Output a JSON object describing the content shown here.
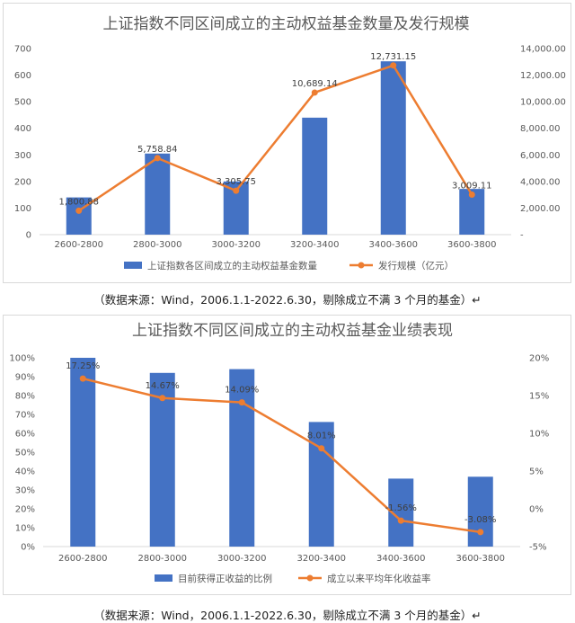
{
  "chart_data": [
    {
      "type": "bar",
      "title": "上证指数不同区间成立的主动权益基金数量及发行规模",
      "categories": [
        "2600-2800",
        "2800-3000",
        "3000-3200",
        "3200-3400",
        "3400-3600",
        "3600-3800"
      ],
      "series": [
        {
          "name": "上证指数各区间成立的主动权益基金数量",
          "kind": "bar",
          "axis": "left",
          "color": "#4472C4",
          "values": [
            140,
            305,
            200,
            440,
            652,
            172
          ]
        },
        {
          "name": "发行规模（亿元）",
          "kind": "line",
          "axis": "right",
          "color": "#ED7D31",
          "values": [
            1800.88,
            5758.84,
            3305.75,
            10689.14,
            12731.15,
            3009.11
          ],
          "labels": [
            "1,800.88",
            "5,758.84",
            "3,305.75",
            "10,689.14",
            "12,731.15",
            "3,009.11"
          ]
        }
      ],
      "y_left": {
        "min": 0,
        "max": 700,
        "ticks": [
          "0",
          "100",
          "200",
          "300",
          "400",
          "500",
          "600",
          "700"
        ]
      },
      "y_right": {
        "min": 0,
        "max": 14000,
        "ticks": [
          "-",
          "2,000.00",
          "4,000.00",
          "6,000.00",
          "8,000.00",
          "10,000.00",
          "12,000.00",
          "14,000.00"
        ]
      },
      "grid": false,
      "legend": "bottom"
    },
    {
      "type": "bar",
      "title": "上证指数不同区间成立的主动权益基金业绩表现",
      "categories": [
        "2600-2800",
        "2800-3000",
        "3000-3200",
        "3200-3400",
        "3400-3600",
        "3600-3800"
      ],
      "series": [
        {
          "name": "目前获得正收益的比例",
          "kind": "bar",
          "axis": "left",
          "color": "#4472C4",
          "values": [
            100,
            92,
            94,
            66,
            36,
            37
          ]
        },
        {
          "name": "成立以来平均年化收益率",
          "kind": "line",
          "axis": "right",
          "color": "#ED7D31",
          "values": [
            17.25,
            14.67,
            14.09,
            8.01,
            -1.56,
            -3.08
          ],
          "labels": [
            "17.25%",
            "14.67%",
            "14.09%",
            "8.01%",
            "-1.56%",
            "-3.08%"
          ]
        }
      ],
      "y_left": {
        "min": 0,
        "max": 100,
        "ticks": [
          "0%",
          "10%",
          "20%",
          "30%",
          "40%",
          "50%",
          "60%",
          "70%",
          "80%",
          "90%",
          "100%"
        ]
      },
      "y_right": {
        "min": -5,
        "max": 20,
        "ticks": [
          "-5%",
          "0%",
          "5%",
          "10%",
          "15%",
          "20%"
        ]
      },
      "grid": false,
      "legend": "bottom"
    }
  ],
  "captions": {
    "source1": "（数据来源：Wind，2006.1.1-2022.6.30，剔除成立不满 3 个月的基金）↵",
    "source2": "（数据来源：Wind，2006.1.1-2022.6.30，剔除成立不满 3 个月的基金）↵"
  }
}
